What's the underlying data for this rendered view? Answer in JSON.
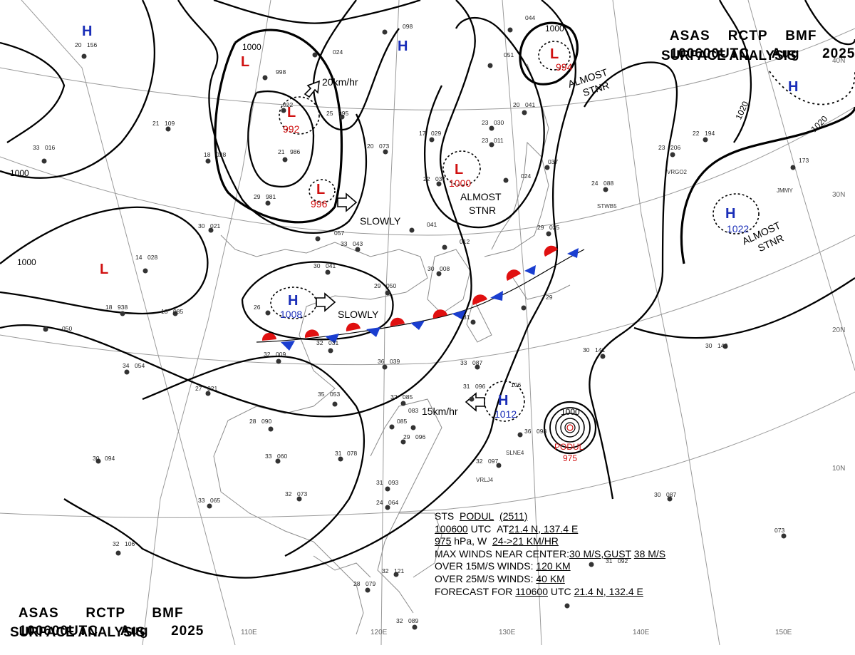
{
  "header": {
    "top": {
      "agency": "ASAS",
      "office": "RCTP",
      "org": "BMF",
      "time": "100600UTC",
      "month": "Aug",
      "year": "2025",
      "title": "SURFACE ANALYSIS"
    },
    "bottom": {
      "agency": "ASAS",
      "office": "RCTP",
      "org": "BMF",
      "time": "100600UTC",
      "month": "Aug",
      "year": "2025",
      "title": "SURFACE ANALYSIS"
    }
  },
  "graticule": {
    "lon": [
      "110E",
      "120E",
      "130E",
      "140E",
      "150E"
    ],
    "lat": [
      "40N",
      "30N",
      "20N",
      "10N"
    ]
  },
  "isobars": [
    "1000",
    "1000",
    "1000",
    "1000",
    "1020",
    "1020"
  ],
  "systems": [
    {
      "kind": "H",
      "pressure": "",
      "color": "#1a2eb8"
    },
    {
      "kind": "H",
      "pressure": "",
      "color": "#1a2eb8"
    },
    {
      "kind": "H",
      "pressure": "",
      "color": "#1a2eb8"
    },
    {
      "kind": "L",
      "pressure": "",
      "color": "#d01010"
    },
    {
      "kind": "L",
      "pressure": "992",
      "color": "#d01010"
    },
    {
      "kind": "L",
      "pressure": "996",
      "color": "#d01010"
    },
    {
      "kind": "L",
      "pressure": "1000",
      "color": "#d01010"
    },
    {
      "kind": "L",
      "pressure": "994",
      "color": "#d01010"
    },
    {
      "kind": "L",
      "pressure": "",
      "color": "#d01010"
    },
    {
      "kind": "H",
      "pressure": "1008",
      "color": "#1a2eb8"
    },
    {
      "kind": "H",
      "pressure": "1012",
      "color": "#1a2eb8"
    },
    {
      "kind": "H",
      "pressure": "1022",
      "color": "#1a2eb8"
    }
  ],
  "motion_labels": [
    "20km/hr",
    "SLOWLY",
    "SLOWLY",
    "15km/hr"
  ],
  "almost_stnr": [
    {
      "a": "ALMOST",
      "b": "STNR"
    },
    {
      "a": "ALMOST",
      "b": "STNR"
    },
    {
      "a": "ALMOST",
      "b": "STNR"
    }
  ],
  "typhoon": {
    "name": "PODUL",
    "pressure": "975",
    "isobar": "1000"
  },
  "station_labels": [
    "VRGO2",
    "JMMY",
    "SLNE4",
    "VRLJ4",
    "STWB5"
  ],
  "stations": [
    {
      "t": "20",
      "p": "156"
    },
    {
      "t": "",
      "p": "098"
    },
    {
      "t": "",
      "p": "044"
    },
    {
      "t": "",
      "p": "024"
    },
    {
      "t": "",
      "p": "998"
    },
    {
      "t": "",
      "p": "051"
    },
    {
      "t": "21",
      "p": "109"
    },
    {
      "t": "",
      "p": "022"
    },
    {
      "t": "25",
      "p": "995"
    },
    {
      "t": "20",
      "p": "041"
    },
    {
      "t": "33",
      "p": "016"
    },
    {
      "t": "18",
      "p": "028"
    },
    {
      "t": "21",
      "p": "986"
    },
    {
      "t": "17",
      "p": "029"
    },
    {
      "t": "20",
      "p": "073"
    },
    {
      "t": "23",
      "p": "030"
    },
    {
      "t": "23",
      "p": "011"
    },
    {
      "t": "22",
      "p": "194"
    },
    {
      "t": "23",
      "p": "206"
    },
    {
      "t": "22",
      "p": "037"
    },
    {
      "t": "",
      "p": "024"
    },
    {
      "t": "",
      "p": "037"
    },
    {
      "t": "29",
      "p": "981"
    },
    {
      "t": "24",
      "p": "088"
    },
    {
      "t": "",
      "p": "173"
    },
    {
      "t": "30",
      "p": "021"
    },
    {
      "t": "",
      "p": "057"
    },
    {
      "t": "",
      "p": "041"
    },
    {
      "t": "29",
      "p": "025"
    },
    {
      "t": "33",
      "p": "043"
    },
    {
      "t": "",
      "p": "012"
    },
    {
      "t": "14",
      "p": "028"
    },
    {
      "t": "30",
      "p": "041"
    },
    {
      "t": "30",
      "p": "008"
    },
    {
      "t": "29",
      "p": "050"
    },
    {
      "t": "18",
      "p": "938"
    },
    {
      "t": "18",
      "p": "085"
    },
    {
      "t": "26",
      "p": ""
    },
    {
      "t": "",
      "p": "050"
    },
    {
      "t": "32",
      "p": "009"
    },
    {
      "t": "32",
      "p": "031"
    },
    {
      "t": "31",
      "p": ""
    },
    {
      "t": "29",
      "p": ""
    },
    {
      "t": "34",
      "p": "054"
    },
    {
      "t": "36",
      "p": "039"
    },
    {
      "t": "33",
      "p": "087"
    },
    {
      "t": "30",
      "p": "141"
    },
    {
      "t": "30",
      "p": "143"
    },
    {
      "t": "27",
      "p": "021"
    },
    {
      "t": "35",
      "p": "053"
    },
    {
      "t": "32",
      "p": "085"
    },
    {
      "t": "31",
      "p": "096"
    },
    {
      "t": "",
      "p": "106"
    },
    {
      "t": "",
      "p": "083"
    },
    {
      "t": "",
      "p": "085"
    },
    {
      "t": "28",
      "p": "090"
    },
    {
      "t": "29",
      "p": "096"
    },
    {
      "t": "36",
      "p": "098"
    },
    {
      "t": "30",
      "p": "094"
    },
    {
      "t": "33",
      "p": "060"
    },
    {
      "t": "31",
      "p": "078"
    },
    {
      "t": "32",
      "p": "097"
    },
    {
      "t": "31",
      "p": "093"
    },
    {
      "t": "24",
      "p": "064"
    },
    {
      "t": "33",
      "p": "065"
    },
    {
      "t": "32",
      "p": "073"
    },
    {
      "t": "30",
      "p": "087"
    },
    {
      "t": "32",
      "p": "106"
    },
    {
      "t": "32",
      "p": "121"
    },
    {
      "t": "31",
      "p": "092"
    },
    {
      "t": "28",
      "p": "079"
    },
    {
      "t": "",
      "p": "073"
    },
    {
      "t": "32",
      "p": "089"
    }
  ],
  "storm_info": {
    "line1": {
      "a": "STS",
      "b": "PODUL",
      "c": "(2511)"
    },
    "line2": {
      "a": "100600",
      "b": "UTC",
      "c": "AT",
      "d": "21.4 N, 137.4 E"
    },
    "line3": {
      "a": "975",
      "b": "hPa, W",
      "c": "24->21 KM/HR"
    },
    "line4": {
      "a": "MAX WINDS NEAR CENTER:",
      "b": "30 M/S,GUST",
      "c": "38 M/S"
    },
    "line5": {
      "a": "OVER 15M/S WINDS:",
      "b": "120 KM"
    },
    "line6": {
      "a": "OVER 25M/S WINDS:",
      "b": "40 KM"
    },
    "line7": {
      "a": "FORECAST FOR",
      "b": "110600",
      "c": "UTC",
      "d": "21.4 N, 132.4 E"
    }
  },
  "colors": {
    "high": "#1a2eb8",
    "low": "#d01010",
    "warm_front": "#e01010",
    "cold_front": "#1a3ed0",
    "grid": "#999999",
    "coast": "#888888"
  }
}
